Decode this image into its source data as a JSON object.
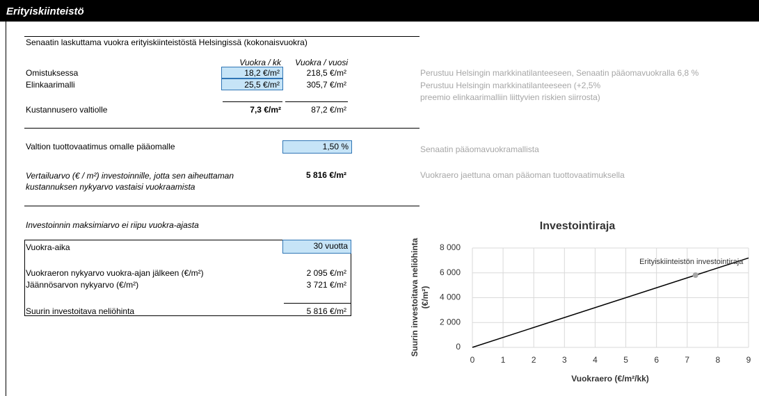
{
  "header": {
    "title": "Erityiskiinteistö"
  },
  "rent": {
    "title": "Senaatin laskuttama vuokra erityiskiinteistöstä Helsingissä (kokonaisvuokra)",
    "columns": [
      "Vuokra / kk",
      "Vuokra / vuosi"
    ],
    "rows": [
      {
        "label": "Omistuksessa",
        "monthly": "18,2 €/m²",
        "yearly": "218,5 €/m²",
        "note": "Perustuu Helsingin markkinatilanteeseen, Senaatin pääomavuokralla 6,8 %"
      },
      {
        "label": "Elinkaarimalli",
        "monthly": "25,5 €/m²",
        "yearly": "305,7 €/m²",
        "note": "Perustuu Helsingin markkinatilanteeseen (+2,5% preemio elinkaarimalliin liittyvien riskien siirrosta)"
      }
    ],
    "difference": {
      "label": "Kustannusero valtiolle",
      "monthly": "7,3 €/m²",
      "yearly": "87,2 €/m²"
    }
  },
  "return": {
    "label": "Valtion tuottovaatimus omalle pääomalle",
    "value": "1,50 %",
    "note": "Senaatin pääomavuokramallista",
    "comparison_label": "Vertailuarvo (€ / m²) investoinnille, jotta sen aiheuttaman kustannuksen nykyarvo vastaisi vuokraamista",
    "comparison_value": "5 816 €/m²",
    "comparison_note": "Vuokraero jaettuna oman pääoman tuottovaatimuksella"
  },
  "investment": {
    "title": "Investoinnin maksimiarvo ei riipu vuokra-ajasta",
    "term_label": "Vuokra-aika",
    "term_value": "30 vuotta",
    "rows": [
      {
        "label": "Vuokraeron nykyarvo vuokra-ajan jälkeen (€/m²)",
        "value": "2 095 €/m²"
      },
      {
        "label": "Jäännösarvon nykyarvo (€/m²)",
        "value": "3 721 €/m²"
      }
    ],
    "total_label": "Suurin investoitava neliöhinta",
    "total_value": "5 816 €/m²"
  },
  "chart_data": {
    "type": "line",
    "title": "Investointiraja",
    "xlabel": "Vuokraero (€/m²/kk)",
    "ylabel": [
      "Suurin investoitava neliöhinta",
      "(€/m²)"
    ],
    "x": [
      0,
      9
    ],
    "series": [
      {
        "values": [
          0,
          7200
        ],
        "color": "#000000"
      }
    ],
    "point": {
      "x": 7.27,
      "y": 5816,
      "color": "#a6a6a6",
      "label": "Erityiskiinteistön investointiraja"
    },
    "xlim": [
      0,
      9
    ],
    "xticks": [
      0,
      1,
      2,
      3,
      4,
      5,
      6,
      7,
      8,
      9
    ],
    "ylim": [
      0,
      8000
    ],
    "yticks": [
      0,
      {
        "value": 2000,
        "label": "2 000"
      },
      {
        "value": 4000,
        "label": "4 000"
      },
      {
        "value": 6000,
        "label": "6 000"
      },
      {
        "value": 8000,
        "label": "8 000"
      }
    ],
    "grid": true
  }
}
